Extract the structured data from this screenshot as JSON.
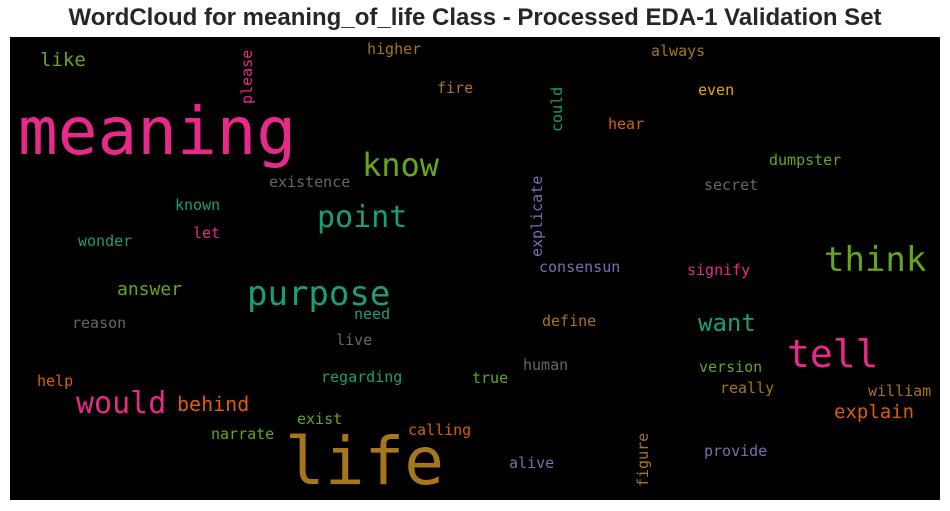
{
  "chart_data": {
    "type": "wordcloud",
    "title": "WordCloud for meaning_of_life Class - Processed EDA-1 Validation Set",
    "background": "#000000",
    "words": [
      {
        "text": "meaning",
        "color": "#e7298a"
      },
      {
        "text": "life",
        "color": "#a6761d"
      },
      {
        "text": "purpose",
        "color": "#1b9e77"
      },
      {
        "text": "tell",
        "color": "#e7298a"
      },
      {
        "text": "think",
        "color": "#66a61e"
      },
      {
        "text": "know",
        "color": "#66a61e"
      },
      {
        "text": "point",
        "color": "#1b9e77"
      },
      {
        "text": "would",
        "color": "#e7298a"
      },
      {
        "text": "want",
        "color": "#1b9e77"
      },
      {
        "text": "explain",
        "color": "#d95f02"
      },
      {
        "text": "behind",
        "color": "#d95f02"
      },
      {
        "text": "answer",
        "color": "#66a61e"
      },
      {
        "text": "like",
        "color": "#66a61e"
      },
      {
        "text": "existence",
        "color": "#666666"
      },
      {
        "text": "reason",
        "color": "#666666"
      },
      {
        "text": "wonder",
        "color": "#1b9e77"
      },
      {
        "text": "known",
        "color": "#1b9e77"
      },
      {
        "text": "let",
        "color": "#e7298a"
      },
      {
        "text": "help",
        "color": "#d95f02"
      },
      {
        "text": "need",
        "color": "#1b9e77"
      },
      {
        "text": "live",
        "color": "#666666"
      },
      {
        "text": "regarding",
        "color": "#1b9e77"
      },
      {
        "text": "exist",
        "color": "#66a61e"
      },
      {
        "text": "narrate",
        "color": "#66a61e"
      },
      {
        "text": "calling",
        "color": "#d95f02"
      },
      {
        "text": "alive",
        "color": "#7570b3"
      },
      {
        "text": "figure",
        "color": "#a6761d"
      },
      {
        "text": "provide",
        "color": "#7570b3"
      },
      {
        "text": "true",
        "color": "#66a61e"
      },
      {
        "text": "human",
        "color": "#666666"
      },
      {
        "text": "define",
        "color": "#a6761d"
      },
      {
        "text": "consensun",
        "color": "#7570b3"
      },
      {
        "text": "explicate",
        "color": "#7570b3"
      },
      {
        "text": "signify",
        "color": "#e7298a"
      },
      {
        "text": "version",
        "color": "#66a61e"
      },
      {
        "text": "really",
        "color": "#a6761d"
      },
      {
        "text": "william",
        "color": "#a6761d"
      },
      {
        "text": "dumpster",
        "color": "#66a61e"
      },
      {
        "text": "secret",
        "color": "#666666"
      },
      {
        "text": "hear",
        "color": "#d95f02"
      },
      {
        "text": "even",
        "color": "#e6ab02"
      },
      {
        "text": "always",
        "color": "#a6761d"
      },
      {
        "text": "could",
        "color": "#1b9e77"
      },
      {
        "text": "fire",
        "color": "#a6761d"
      },
      {
        "text": "higher",
        "color": "#a6761d"
      },
      {
        "text": "please",
        "color": "#e7298a"
      }
    ]
  }
}
